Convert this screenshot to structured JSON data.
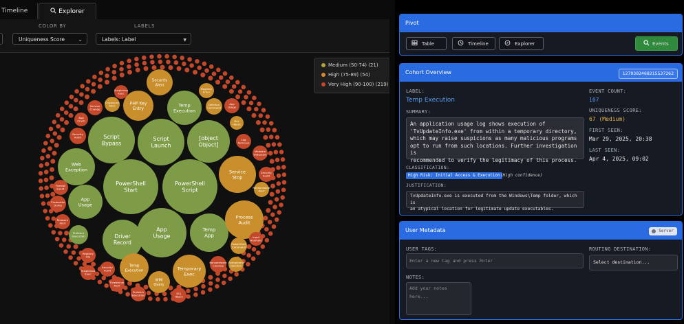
{
  "tabs": {
    "timeline": "Timeline",
    "explorer": "Explorer"
  },
  "controls": {
    "color_by_label": "COLOR BY",
    "color_by_value": "Uniqueness Score",
    "labels_label": "LABELS",
    "labels_value": "Labels: Label"
  },
  "legend": [
    {
      "label": "Medium (50-74) (21)",
      "color": "#b6a33b"
    },
    {
      "label": "High (75-89) (54)",
      "color": "#d9892d"
    },
    {
      "label": "Very High (90-100) (219)",
      "color": "#c9442a"
    }
  ],
  "bubbles": {
    "colors": {
      "green": "#7e9b48",
      "gold": "#c98f2c",
      "red": "#c4482a"
    },
    "large": [
      "PowerShell Start",
      "PowerShell Script",
      "App Usage",
      "Script Launch",
      "Script Bypass",
      "[object Object]",
      "Driver Record",
      "Temp Execution",
      "Temp App",
      "Process Audit",
      "Service Stop",
      "Web Exception",
      "App Usage",
      "Temporary Exec",
      "PHP Key Entry",
      "Security Alert",
      "Temp Execution",
      "WMI Query"
    ],
    "small": [
      "Suspicious Exec",
      "Registry Entry",
      "Cryptocurr Alert",
      "Service Change",
      "Deletion Command",
      "App Usage",
      "App Crash",
      "Security Audit",
      "DLL Hijack",
      "Log Removal",
      "Malware Detection",
      "Security Audit",
      "Firewall Event",
      "Credential Dump",
      "Ransomware Alert",
      "Malware Alert",
      "Prefetch Execution",
      "Registry File",
      "PowerShell Command",
      "Input Anomaly",
      "Security Audit",
      "Ransomware Cleanup",
      "Component Deletion",
      "Suspicious Exec",
      "Cache Cleanup Command",
      "Threatener Alert",
      "Prefetch Execution",
      "DLL Hijack"
    ]
  },
  "pivot": {
    "title": "Pivot",
    "table": "Table",
    "timeline": "Timeline",
    "explorer": "Explorer",
    "events": "Events"
  },
  "cohort": {
    "title": "Cohort Overview",
    "id": "1279302468215537262",
    "label_caption": "LABEL:",
    "label": "Temp Execution",
    "summary_caption": "SUMMARY:",
    "summary_lines": [
      "An application usage log shows execution of",
      "'TvUpdateInfo.exe' from within a temporary directory,",
      "which may raise suspicions as many malicious programs",
      "opt to run from such locations. Further investigation is",
      "recommended to verify the legitimacy of this process."
    ],
    "classification_caption": "CLASSIFICATION:",
    "classification_badge": "High Risk: Initial Access & Execution",
    "classification_conf": "(High confidence)",
    "justification_caption": "JUSTIFICATION:",
    "justification_lines": [
      "TvUpdateInfo.exe is executed from the Windows\\Temp folder, which is",
      "an atypical location for legitimate update executables."
    ],
    "event_count_caption": "EVENT COUNT:",
    "event_count": "107",
    "uniqueness_caption": "UNIQUENESS SCORE:",
    "uniqueness": "67 (Medium)",
    "first_seen_caption": "FIRST SEEN:",
    "first_seen": "Mar 29, 2025, 20:38",
    "last_seen_caption": "LAST SEEN:",
    "last_seen": "Apr 4, 2025, 09:02"
  },
  "metadata": {
    "title": "User Metadata",
    "toggle_label": "Server",
    "user_tags_caption": "USER TAGS:",
    "tags_placeholder": "Enter a new tag and press Enter",
    "routing_caption": "ROUTING DESTINATION:",
    "routing_value": "Select destination...",
    "notes_caption": "NOTES:",
    "notes_placeholder": "Add your notes here..."
  },
  "colors": {
    "accent": "#2a6be2",
    "events_button": "#2f8a3d",
    "cohort_label": "#5c9cf0",
    "uniqueness": "#e0b24a"
  }
}
